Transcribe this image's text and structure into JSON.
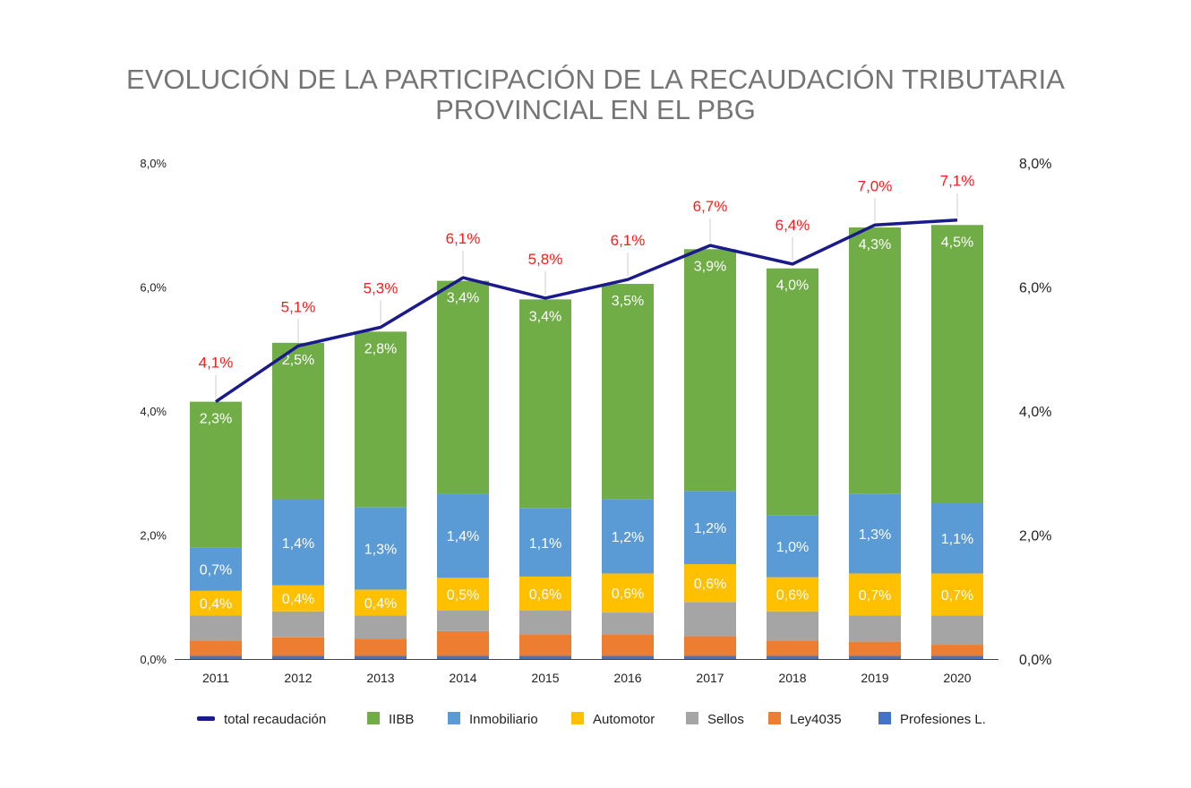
{
  "title": {
    "line1": "EVOLUCIÓN DE LA PARTICIPACIÓN DE LA RECAUDACIÓN TRIBUTARIA",
    "line2": "PROVINCIAL EN EL PBG"
  },
  "colors": {
    "total": "#1a1a8c",
    "IIBB": "#70ad47",
    "Inmobiliario": "#5b9bd5",
    "Automotor": "#ffc000",
    "Sellos": "#a5a5a5",
    "Ley4035": "#ed7d31",
    "Profesiones": "#4472c4"
  },
  "chart_data": {
    "type": "bar",
    "stacked": true,
    "categories": [
      "2011",
      "2012",
      "2013",
      "2014",
      "2015",
      "2016",
      "2017",
      "2018",
      "2019",
      "2020"
    ],
    "ylim": [
      0,
      8
    ],
    "yticks": [
      "0,0%",
      "2,0%",
      "4,0%",
      "6,0%",
      "8,0%"
    ],
    "ytick_values": [
      0,
      2,
      4,
      6,
      8
    ],
    "series": [
      {
        "name": "Profesiones L.",
        "key": "Profesiones",
        "values": [
          0.05,
          0.05,
          0.05,
          0.05,
          0.05,
          0.05,
          0.05,
          0.05,
          0.05,
          0.05
        ],
        "labels": [
          "",
          "",
          "",
          "",
          "",
          "",
          "",
          "",
          "",
          ""
        ]
      },
      {
        "name": "Ley4035",
        "key": "Ley4035",
        "values": [
          0.25,
          0.3,
          0.28,
          0.4,
          0.35,
          0.35,
          0.32,
          0.25,
          0.23,
          0.18
        ],
        "labels": [
          "",
          "",
          "",
          "",
          "",
          "",
          "",
          "",
          "",
          ""
        ]
      },
      {
        "name": "Sellos",
        "key": "Sellos",
        "values": [
          0.4,
          0.42,
          0.37,
          0.33,
          0.38,
          0.35,
          0.55,
          0.47,
          0.42,
          0.47
        ],
        "labels": [
          "",
          "",
          "",
          "",
          "",
          "",
          "",
          "",
          "",
          ""
        ]
      },
      {
        "name": "Automotor",
        "key": "Automotor",
        "values": [
          0.4,
          0.42,
          0.42,
          0.53,
          0.55,
          0.63,
          0.61,
          0.55,
          0.68,
          0.68
        ],
        "labels": [
          "0,4%",
          "0,4%",
          "0,4%",
          "0,5%",
          "0,6%",
          "0,6%",
          "0,6%",
          "0,6%",
          "0,7%",
          "0,7%"
        ]
      },
      {
        "name": "Inmobiliario",
        "key": "Inmobiliario",
        "values": [
          0.7,
          1.38,
          1.33,
          1.36,
          1.1,
          1.2,
          1.18,
          1.0,
          1.28,
          1.14
        ],
        "labels": [
          "0,7%",
          "1,4%",
          "1,3%",
          "1,4%",
          "1,1%",
          "1,2%",
          "1,2%",
          "1,0%",
          "1,3%",
          "1,1%"
        ]
      },
      {
        "name": "IIBB",
        "key": "IIBB",
        "values": [
          2.35,
          2.53,
          2.83,
          3.43,
          3.37,
          3.47,
          3.9,
          3.98,
          4.3,
          4.48
        ],
        "labels": [
          "2,3%",
          "2,5%",
          "2,8%",
          "3,4%",
          "3,4%",
          "3,5%",
          "3,9%",
          "4,0%",
          "4,3%",
          "4,5%"
        ]
      }
    ],
    "line": {
      "name": "total recaudación",
      "values": [
        4.15,
        5.05,
        5.35,
        6.15,
        5.82,
        6.12,
        6.67,
        6.37,
        7.0,
        7.08
      ],
      "labels": [
        "4,1%",
        "5,1%",
        "5,3%",
        "6,1%",
        "5,8%",
        "6,1%",
        "6,7%",
        "6,4%",
        "7,0%",
        "7,1%"
      ]
    },
    "legend": [
      "total recaudación",
      "IIBB",
      "Inmobiliario",
      "Automotor",
      "Sellos",
      "Ley4035",
      "Profesiones L."
    ],
    "legend_position": "bottom"
  }
}
